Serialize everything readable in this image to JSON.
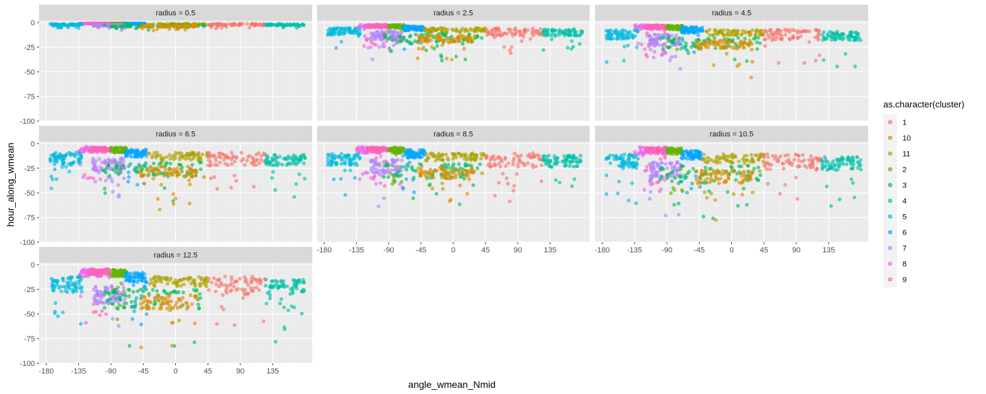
{
  "chart_data": {
    "type": "scatter",
    "facet_var": "radius",
    "facets": [
      {
        "strip": "radius = 0.5"
      },
      {
        "strip": "radius = 2.5"
      },
      {
        "strip": "radius = 4.5"
      },
      {
        "strip": "radius = 6.5"
      },
      {
        "strip": "radius = 8.5"
      },
      {
        "strip": "radius = 10.5"
      },
      {
        "strip": "radius = 12.5"
      }
    ],
    "xlabel": "angle_wmean_Nmid",
    "ylabel": "hour_along_wmean",
    "xlim": [
      -190,
      190
    ],
    "ylim": [
      -100,
      2
    ],
    "xticks": [
      -180,
      -135,
      -90,
      -45,
      0,
      45,
      90,
      135
    ],
    "xtick_labels": [
      "-180",
      "-135",
      "-90",
      "-45",
      "0",
      "45",
      "90",
      "135"
    ],
    "yticks": [
      0,
      -25,
      -50,
      -75,
      -100
    ],
    "ytick_labels": [
      "0",
      "-25",
      "-50",
      "-75",
      "-100"
    ],
    "grid": true,
    "legend": {
      "title": "as.character(cluster)",
      "position": "right",
      "entries": [
        {
          "label": "1",
          "color": "#F8766D"
        },
        {
          "label": "10",
          "color": "#DB8E00"
        },
        {
          "label": "11",
          "color": "#AEA200"
        },
        {
          "label": "2",
          "color": "#64B200"
        },
        {
          "label": "3",
          "color": "#00BD5C"
        },
        {
          "label": "4",
          "color": "#00C1A7"
        },
        {
          "label": "5",
          "color": "#00BADE"
        },
        {
          "label": "6",
          "color": "#00A6FF"
        },
        {
          "label": "7",
          "color": "#B385FF"
        },
        {
          "label": "8",
          "color": "#EF67EB"
        },
        {
          "label": "9",
          "color": "#FF63B6"
        }
      ]
    },
    "clusters": [
      {
        "cluster": "8",
        "angle_range": [
          -135,
          -90
        ],
        "base_y": -4,
        "bottom_y": -12
      },
      {
        "cluster": "9",
        "angle_range": [
          -120,
          -92
        ],
        "base_y": -5,
        "bottom_y": -10
      },
      {
        "cluster": "2",
        "angle_range": [
          -90,
          -68
        ],
        "base_y": -5,
        "bottom_y": -12
      },
      {
        "cluster": "6",
        "angle_range": [
          -70,
          -40
        ],
        "base_y": -8,
        "bottom_y": -18
      },
      {
        "cluster": "11",
        "angle_range": [
          -40,
          45
        ],
        "base_y": -12,
        "bottom_y": -22
      },
      {
        "cluster": "1",
        "angle_range": [
          45,
          125
        ],
        "base_y": -12,
        "bottom_y": -30
      },
      {
        "cluster": "5",
        "angle_range": [
          -175,
          -130
        ],
        "base_y": -12,
        "bottom_y": -28
      },
      {
        "cluster": "4",
        "angle_range": [
          125,
          180
        ],
        "base_y": -15,
        "bottom_y": -30
      },
      {
        "cluster": "7",
        "angle_range": [
          -115,
          -70
        ],
        "base_y": -20,
        "bottom_y": -40
      },
      {
        "cluster": "3",
        "angle_range": [
          -100,
          40
        ],
        "base_y": -25,
        "bottom_y": -45
      },
      {
        "cluster": "10",
        "angle_range": [
          -50,
          30
        ],
        "base_y": -30,
        "bottom_y": -45
      }
    ]
  }
}
